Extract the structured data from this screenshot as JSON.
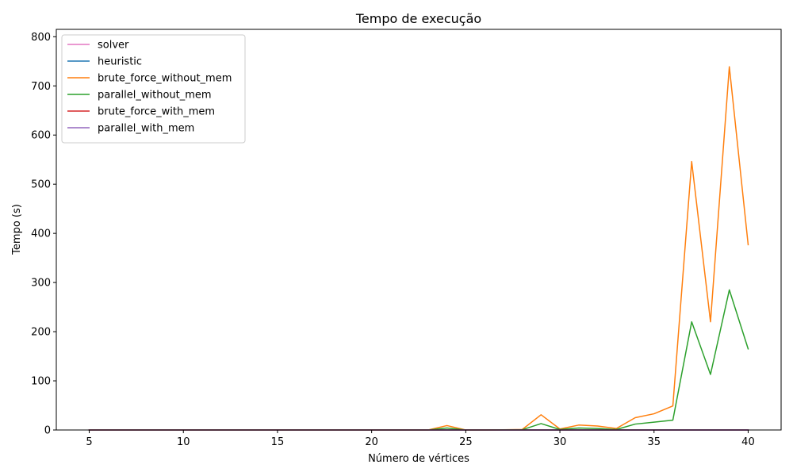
{
  "chart_data": {
    "type": "line",
    "title": "Tempo de execução",
    "xlabel": "Número de vértices",
    "ylabel": "Tempo (s)",
    "xlim": [
      3.25,
      41.75
    ],
    "ylim": [
      0,
      815
    ],
    "xticks": [
      5,
      10,
      15,
      20,
      25,
      30,
      35,
      40
    ],
    "yticks": [
      0,
      100,
      200,
      300,
      400,
      500,
      600,
      700,
      800
    ],
    "legend_position": "top-left",
    "x": [
      5,
      6,
      7,
      8,
      9,
      10,
      11,
      12,
      13,
      14,
      15,
      16,
      17,
      18,
      19,
      20,
      21,
      22,
      23,
      24,
      25,
      26,
      27,
      28,
      29,
      30,
      31,
      32,
      33,
      34,
      35,
      36,
      37,
      38,
      39,
      40
    ],
    "series": [
      {
        "name": "solver",
        "color": "#e377c2",
        "values": [
          0,
          0,
          0,
          0,
          0,
          0,
          0,
          0,
          0,
          0,
          0,
          0,
          0,
          0,
          0,
          0,
          0,
          0,
          0,
          0,
          0,
          0,
          0,
          0,
          0,
          0,
          0,
          0,
          0,
          0,
          0,
          0,
          0,
          0,
          0,
          0
        ]
      },
      {
        "name": "heuristic",
        "color": "#1f77b4",
        "values": [
          0,
          0,
          0,
          0,
          0,
          0,
          0,
          0,
          0,
          0,
          0,
          0,
          0,
          0,
          0,
          0,
          0,
          0,
          0,
          0,
          0,
          0,
          0,
          0,
          0,
          0,
          0,
          0,
          0,
          0,
          0,
          0,
          0,
          0,
          0,
          0
        ]
      },
      {
        "name": "brute_force_without_mem",
        "color": "#ff7f0e",
        "values": [
          0,
          0,
          0,
          0,
          0,
          0,
          0,
          0,
          0,
          0,
          0,
          0,
          0,
          0,
          0,
          0,
          0,
          0,
          0,
          9,
          0,
          0,
          0.5,
          1,
          31,
          2,
          10,
          8,
          3,
          25,
          33,
          49,
          546,
          220,
          739,
          377
        ]
      },
      {
        "name": "parallel_without_mem",
        "color": "#2ca02c",
        "values": [
          0,
          0,
          0,
          0,
          0,
          0,
          0,
          0,
          0,
          0,
          0,
          0,
          0,
          0,
          0,
          0,
          0,
          0,
          0,
          4,
          0,
          0,
          0.3,
          0.5,
          13,
          1,
          4,
          3,
          1,
          12,
          16,
          20,
          220,
          113,
          285,
          165
        ]
      },
      {
        "name": "brute_force_with_mem",
        "color": "#d62728",
        "values": [
          0,
          0,
          0,
          0,
          0,
          0,
          0,
          0,
          0,
          0,
          0,
          0,
          0,
          0,
          0,
          0,
          0,
          0,
          0,
          0,
          0,
          0,
          0,
          0,
          0,
          0,
          0,
          0,
          0,
          0,
          0,
          0,
          0,
          0,
          0,
          0
        ]
      },
      {
        "name": "parallel_with_mem",
        "color": "#9467bd",
        "values": [
          0,
          0,
          0,
          0,
          0,
          0,
          0,
          0,
          0,
          0,
          0,
          0,
          0,
          0,
          0,
          0,
          0,
          0,
          0,
          0,
          0,
          0,
          0,
          0,
          0,
          0,
          0,
          0,
          0,
          0,
          0,
          0,
          0,
          0,
          0,
          0
        ]
      }
    ]
  }
}
